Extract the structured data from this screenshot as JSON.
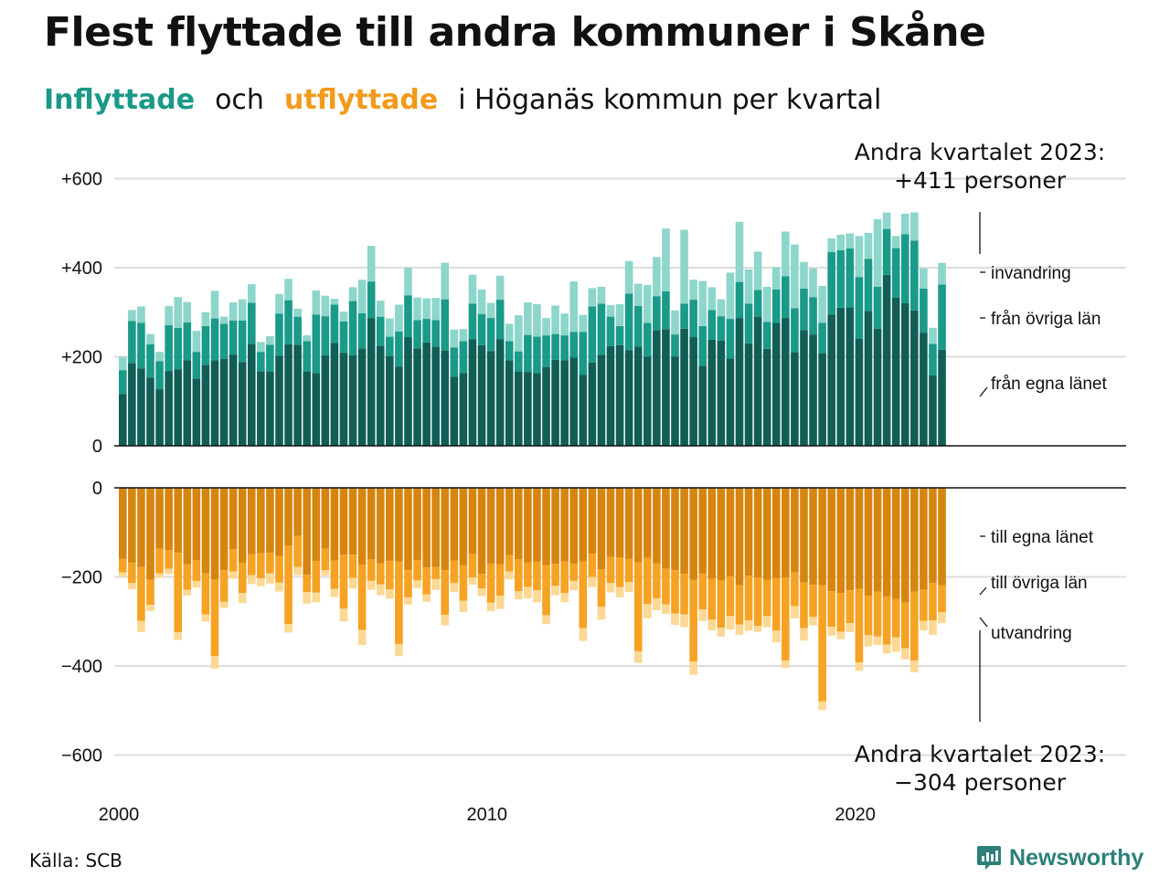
{
  "title": "Flest flyttade till andra kommuner i Skåne",
  "subtitle": {
    "part1": "Inflyttade",
    "part2": "och",
    "part3": "utflyttade",
    "part4": "i Höganäs kommun per kvartal"
  },
  "source": "Källa: SCB",
  "brand": "Newsworthy",
  "colors": {
    "in_own_county": "#105e55",
    "in_other_counties": "#1a9a89",
    "in_immigration": "#8dd6cb",
    "out_own_county": "#d6850f",
    "out_other_counties": "#f6a223",
    "out_emigration": "#fbd894",
    "grid": "#dcdcdc",
    "baseline": "#111111",
    "brand": "#2d8079"
  },
  "chart_data": {
    "type": "bar",
    "subtype": "stacked, mirrored (inflow above, outflow below)",
    "x_period": "quarterly, 2000 Q1 – 2023 Q2",
    "x_ticks": [
      "2000",
      "2010",
      "2020"
    ],
    "inflow_y_ticks": [
      "0",
      "+200",
      "+400",
      "+600"
    ],
    "outflow_y_ticks": [
      "0",
      "−200",
      "−400",
      "−600"
    ],
    "inflow_ylim": [
      0,
      600
    ],
    "outflow_ylim": [
      -600,
      0
    ],
    "grid": true,
    "inflow_callout": {
      "line1": "Andra kvartalet 2023:",
      "line2": "+411 personer"
    },
    "outflow_callout": {
      "line1": "Andra kvartalet 2023:",
      "line2": "−304 personer"
    },
    "inflow_segment_labels": [
      "invandring",
      "från övriga län",
      "från egna länet"
    ],
    "outflow_segment_labels": [
      "till egna länet",
      "till övriga län",
      "utvandring"
    ],
    "inflow": {
      "own_county": [
        116,
        186,
        174,
        153,
        127,
        168,
        172,
        192,
        151,
        182,
        192,
        195,
        205,
        188,
        229,
        167,
        167,
        202,
        228,
        227,
        167,
        163,
        203,
        231,
        209,
        203,
        219,
        287,
        225,
        201,
        178,
        244,
        219,
        232,
        223,
        214,
        155,
        163,
        239,
        226,
        213,
        239,
        192,
        167,
        166,
        163,
        177,
        193,
        192,
        198,
        159,
        187,
        204,
        224,
        226,
        215,
        223,
        200,
        260,
        262,
        200,
        263,
        244,
        180,
        238,
        236,
        196,
        287,
        230,
        290,
        218,
        276,
        287,
        210,
        260,
        250,
        208,
        295,
        310,
        311,
        240,
        303,
        263,
        384,
        333,
        320,
        304,
        254,
        158,
        216
      ],
      "other_counties": [
        54,
        94,
        102,
        75,
        63,
        103,
        93,
        85,
        60,
        87,
        94,
        79,
        76,
        93,
        92,
        44,
        60,
        95,
        99,
        63,
        68,
        132,
        88,
        86,
        70,
        122,
        79,
        82,
        65,
        44,
        79,
        94,
        63,
        53,
        59,
        115,
        66,
        72,
        80,
        70,
        74,
        89,
        43,
        45,
        83,
        82,
        71,
        58,
        56,
        58,
        97,
        126,
        115,
        66,
        43,
        127,
        91,
        76,
        76,
        85,
        50,
        56,
        84,
        89,
        67,
        55,
        89,
        81,
        89,
        60,
        60,
        75,
        94,
        99,
        93,
        84,
        68,
        140,
        129,
        132,
        139,
        117,
        94,
        103,
        111,
        155,
        157,
        99,
        71,
        146
      ],
      "immigration": [
        30,
        25,
        37,
        23,
        21,
        43,
        69,
        46,
        47,
        31,
        62,
        16,
        41,
        48,
        42,
        22,
        19,
        44,
        48,
        18,
        13,
        54,
        46,
        13,
        22,
        31,
        75,
        80,
        36,
        41,
        60,
        62,
        51,
        46,
        50,
        82,
        40,
        27,
        65,
        55,
        34,
        54,
        39,
        81,
        73,
        73,
        39,
        64,
        49,
        113,
        38,
        41,
        38,
        26,
        49,
        73,
        50,
        85,
        88,
        141,
        54,
        166,
        45,
        101,
        51,
        38,
        104,
        135,
        77,
        86,
        79,
        50,
        100,
        143,
        60,
        64,
        83,
        31,
        35,
        34,
        92,
        58,
        152,
        37,
        27,
        46,
        63,
        45,
        36,
        49
      ]
    },
    "outflow": {
      "own_county": [
        159,
        168,
        178,
        206,
        137,
        140,
        146,
        172,
        162,
        192,
        206,
        185,
        138,
        168,
        149,
        147,
        146,
        153,
        130,
        108,
        195,
        164,
        137,
        163,
        150,
        150,
        173,
        160,
        170,
        164,
        165,
        185,
        162,
        179,
        178,
        185,
        163,
        174,
        149,
        193,
        170,
        172,
        151,
        160,
        168,
        166,
        174,
        171,
        165,
        170,
        165,
        148,
        183,
        155,
        156,
        159,
        167,
        157,
        170,
        182,
        185,
        193,
        207,
        193,
        204,
        208,
        198,
        219,
        197,
        201,
        207,
        203,
        201,
        190,
        213,
        218,
        219,
        232,
        236,
        230,
        227,
        242,
        233,
        244,
        250,
        258,
        233,
        229,
        214,
        219
      ],
      "other_counties": [
        31,
        46,
        121,
        57,
        55,
        42,
        178,
        57,
        47,
        92,
        172,
        71,
        50,
        68,
        47,
        56,
        46,
        60,
        176,
        70,
        39,
        71,
        48,
        64,
        121,
        52,
        146,
        49,
        47,
        64,
        186,
        61,
        46,
        60,
        27,
        100,
        51,
        80,
        52,
        33,
        88,
        70,
        37,
        72,
        55,
        64,
        112,
        49,
        71,
        39,
        150,
        52,
        84,
        59,
        67,
        53,
        200,
        104,
        78,
        80,
        97,
        91,
        183,
        80,
        92,
        106,
        90,
        88,
        101,
        109,
        81,
        117,
        187,
        76,
        102,
        72,
        260,
        80,
        87,
        74,
        165,
        89,
        101,
        108,
        86,
        102,
        155,
        70,
        84,
        60
      ],
      "emigration": [
        10,
        14,
        25,
        14,
        10,
        12,
        17,
        13,
        15,
        16,
        28,
        14,
        16,
        23,
        20,
        18,
        23,
        20,
        19,
        18,
        26,
        22,
        12,
        18,
        29,
        24,
        34,
        20,
        24,
        21,
        27,
        16,
        17,
        17,
        24,
        24,
        20,
        25,
        16,
        17,
        19,
        30,
        18,
        18,
        25,
        27,
        20,
        21,
        21,
        21,
        29,
        23,
        29,
        21,
        23,
        22,
        26,
        32,
        27,
        21,
        26,
        29,
        30,
        26,
        24,
        20,
        30,
        23,
        23,
        13,
        25,
        27,
        16,
        27,
        28,
        19,
        20,
        20,
        17,
        20,
        19,
        25,
        19,
        20,
        32,
        25,
        26,
        21,
        32,
        25
      ]
    }
  }
}
